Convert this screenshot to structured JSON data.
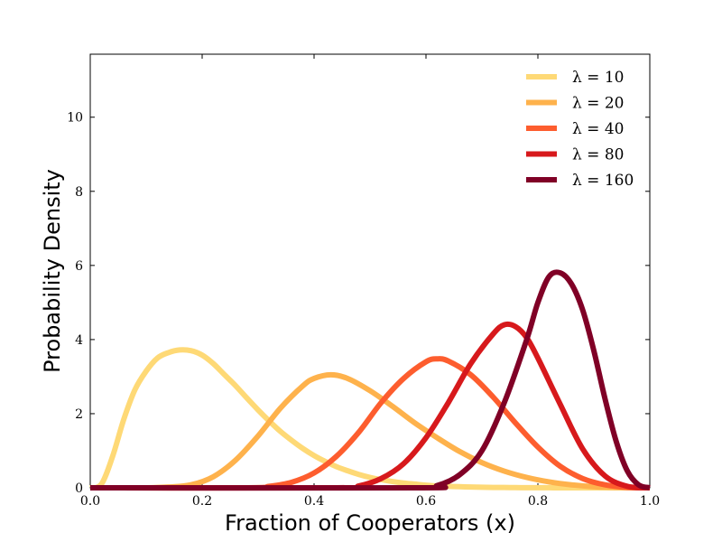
{
  "chart_data": {
    "type": "line",
    "xlabel": "Fraction of Cooperators (x)",
    "ylabel": "Probability Density",
    "xlim": [
      0.0,
      1.0
    ],
    "ylim": [
      0,
      11.7
    ],
    "xticks": [
      "0.0",
      "0.2",
      "0.4",
      "0.6",
      "0.8",
      "1.0"
    ],
    "yticks": [
      "0",
      "2",
      "4",
      "6",
      "8",
      "10"
    ],
    "legend_position": "top-right",
    "series": [
      {
        "name": "λ = 10",
        "color": "#fed976",
        "x": [
          0.0,
          0.02,
          0.04,
          0.06,
          0.08,
          0.1,
          0.12,
          0.14,
          0.16,
          0.18,
          0.2,
          0.22,
          0.24,
          0.26,
          0.28,
          0.3,
          0.32,
          0.34,
          0.36,
          0.38,
          0.4,
          0.42,
          0.44,
          0.46,
          0.48,
          0.5,
          0.52,
          0.54,
          0.56,
          0.58,
          0.6,
          0.62,
          0.64,
          0.66,
          0.68,
          0.7,
          0.72,
          0.74,
          0.76,
          0.78,
          0.8,
          0.82,
          0.84,
          0.86,
          0.88,
          0.9,
          0.92,
          0.94,
          0.96,
          0.98,
          1.0
        ],
        "y": [
          0.0,
          0.1,
          0.85,
          1.85,
          2.65,
          3.15,
          3.5,
          3.65,
          3.72,
          3.7,
          3.58,
          3.35,
          3.05,
          2.75,
          2.42,
          2.1,
          1.8,
          1.52,
          1.28,
          1.06,
          0.87,
          0.71,
          0.57,
          0.46,
          0.36,
          0.28,
          0.22,
          0.17,
          0.13,
          0.1,
          0.07,
          0.05,
          0.04,
          0.03,
          0.02,
          0.015,
          0.01,
          0.008,
          0.005,
          0.004,
          0.003,
          0.002,
          0.001,
          0.001,
          0.0,
          0.0,
          0.0,
          0.0,
          0.0,
          0.0,
          0.0
        ]
      },
      {
        "name": "λ = 20",
        "color": "#feb24c",
        "x": [
          0.0,
          0.1,
          0.14,
          0.18,
          0.22,
          0.26,
          0.3,
          0.34,
          0.38,
          0.4,
          0.43,
          0.46,
          0.5,
          0.54,
          0.58,
          0.62,
          0.66,
          0.7,
          0.74,
          0.78,
          0.82,
          0.86,
          0.9,
          0.94,
          0.98,
          1.0
        ],
        "y": [
          0.0,
          0.0,
          0.02,
          0.08,
          0.3,
          0.75,
          1.4,
          2.15,
          2.75,
          2.95,
          3.05,
          2.95,
          2.62,
          2.2,
          1.75,
          1.35,
          0.98,
          0.68,
          0.45,
          0.28,
          0.16,
          0.08,
          0.03,
          0.01,
          0.0,
          0.0
        ]
      },
      {
        "name": "λ = 40",
        "color": "#fd5d2e",
        "x": [
          0.0,
          0.28,
          0.32,
          0.36,
          0.4,
          0.44,
          0.48,
          0.52,
          0.56,
          0.6,
          0.62,
          0.64,
          0.68,
          0.72,
          0.76,
          0.8,
          0.84,
          0.88,
          0.92,
          0.96,
          1.0
        ],
        "y": [
          0.0,
          0.0,
          0.04,
          0.15,
          0.4,
          0.85,
          1.5,
          2.3,
          2.95,
          3.4,
          3.48,
          3.42,
          3.05,
          2.45,
          1.75,
          1.1,
          0.58,
          0.25,
          0.08,
          0.01,
          0.0
        ]
      },
      {
        "name": "λ = 80",
        "color": "#d7191c",
        "x": [
          0.0,
          0.44,
          0.48,
          0.52,
          0.56,
          0.6,
          0.64,
          0.68,
          0.72,
          0.74,
          0.76,
          0.78,
          0.8,
          0.84,
          0.88,
          0.92,
          0.96,
          1.0
        ],
        "y": [
          0.0,
          0.0,
          0.05,
          0.25,
          0.65,
          1.35,
          2.3,
          3.35,
          4.15,
          4.4,
          4.35,
          4.05,
          3.5,
          2.25,
          1.05,
          0.32,
          0.04,
          0.0
        ]
      },
      {
        "name": "λ = 160",
        "color": "#800026",
        "x": [
          0.0,
          0.58,
          0.62,
          0.66,
          0.7,
          0.74,
          0.78,
          0.8,
          0.82,
          0.84,
          0.86,
          0.88,
          0.9,
          0.92,
          0.94,
          0.96,
          0.98,
          1.0
        ],
        "y": [
          0.0,
          0.0,
          0.06,
          0.35,
          1.0,
          2.3,
          4.0,
          5.0,
          5.7,
          5.8,
          5.5,
          4.8,
          3.7,
          2.4,
          1.25,
          0.45,
          0.08,
          0.0
        ]
      }
    ]
  }
}
